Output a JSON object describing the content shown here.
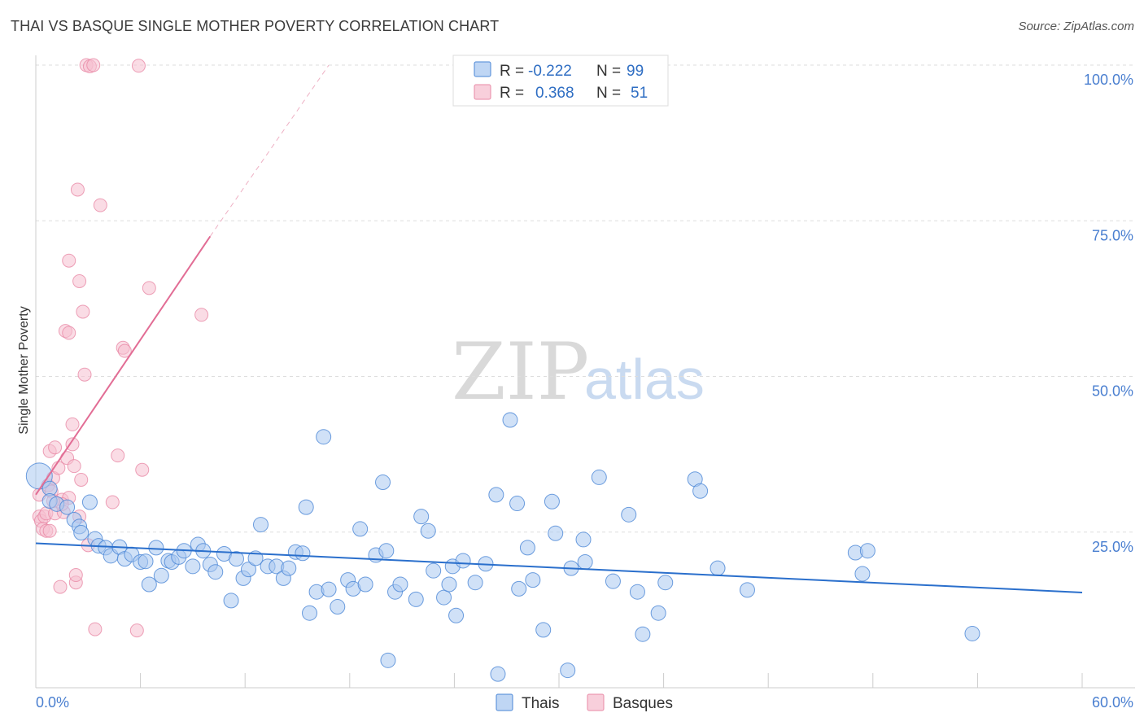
{
  "title": "THAI VS BASQUE SINGLE MOTHER POVERTY CORRELATION CHART",
  "source": "Source: ZipAtlas.com",
  "watermark": {
    "zip": "ZIP",
    "atlas": "atlas"
  },
  "legend": {
    "rows": [
      {
        "r_label": "R =",
        "r_value": "-0.222",
        "n_label": "N =",
        "n_value": "99"
      },
      {
        "r_label": "R =",
        "r_value": "0.368",
        "n_label": "N =",
        "n_value": "51"
      }
    ]
  },
  "bottom_legend": [
    "Thais",
    "Basques"
  ],
  "colors": {
    "thais_fill": "#a9c8f0",
    "thais_stroke": "#4a86d6",
    "thais_line": "#2a6fcc",
    "basques_fill": "#f6bfcf",
    "basques_stroke": "#e88aa6",
    "basques_line": "#e26d95",
    "tick_text": "#4a7fd0",
    "grid": "#dddddd"
  },
  "chart_data": {
    "type": "scatter",
    "title": "THAI VS BASQUE SINGLE MOTHER POVERTY CORRELATION CHART",
    "xlabel": "",
    "ylabel": "Single Mother Poverty",
    "xlim": [
      0,
      60
    ],
    "ylim": [
      0,
      100
    ],
    "x_tick_labels": [
      "0.0%",
      "60.0%"
    ],
    "y_tick_labels": [
      "25.0%",
      "50.0%",
      "75.0%",
      "100.0%"
    ],
    "y_ticks": [
      25,
      50,
      75,
      100
    ],
    "grid": true,
    "legend_position": "top-center",
    "series": [
      {
        "name": "Thais",
        "r": -0.222,
        "n": 99,
        "trend": {
          "x0": 0,
          "y0": 23.2,
          "x1": 60,
          "y1": 15.3
        },
        "points": [
          [
            0.2,
            34
          ],
          [
            0.8,
            32
          ],
          [
            0.8,
            30
          ],
          [
            1.2,
            29.5
          ],
          [
            1.8,
            29
          ],
          [
            2.2,
            27
          ],
          [
            3.1,
            29.8
          ],
          [
            2.5,
            25.9
          ],
          [
            2.6,
            24.9
          ],
          [
            3.4,
            23.9
          ],
          [
            3.6,
            22.8
          ],
          [
            4.0,
            22.5
          ],
          [
            4.3,
            21.2
          ],
          [
            4.8,
            22.6
          ],
          [
            5.1,
            20.7
          ],
          [
            5.5,
            21.4
          ],
          [
            6.0,
            20.2
          ],
          [
            6.3,
            20.3
          ],
          [
            6.5,
            16.6
          ],
          [
            6.9,
            22.5
          ],
          [
            7.2,
            18.0
          ],
          [
            7.6,
            20.4
          ],
          [
            7.8,
            20.2
          ],
          [
            8.2,
            21.0
          ],
          [
            8.5,
            22.0
          ],
          [
            9.0,
            19.5
          ],
          [
            9.3,
            23.0
          ],
          [
            9.6,
            22.0
          ],
          [
            10.0,
            19.8
          ],
          [
            10.3,
            18.6
          ],
          [
            10.8,
            21.5
          ],
          [
            11.2,
            14.0
          ],
          [
            11.5,
            20.7
          ],
          [
            11.9,
            17.6
          ],
          [
            12.2,
            19.0
          ],
          [
            12.6,
            20.8
          ],
          [
            12.9,
            26.2
          ],
          [
            13.3,
            19.5
          ],
          [
            13.8,
            19.5
          ],
          [
            14.2,
            17.6
          ],
          [
            14.5,
            19.2
          ],
          [
            14.9,
            21.8
          ],
          [
            15.3,
            21.6
          ],
          [
            15.5,
            29.0
          ],
          [
            15.7,
            12.0
          ],
          [
            16.1,
            15.4
          ],
          [
            16.5,
            40.3
          ],
          [
            16.8,
            15.8
          ],
          [
            17.3,
            13.0
          ],
          [
            17.9,
            17.3
          ],
          [
            18.2,
            15.9
          ],
          [
            18.6,
            25.5
          ],
          [
            18.9,
            16.6
          ],
          [
            19.5,
            21.3
          ],
          [
            19.9,
            33.0
          ],
          [
            20.1,
            22.0
          ],
          [
            20.6,
            15.4
          ],
          [
            20.9,
            16.6
          ],
          [
            21.8,
            14.2
          ],
          [
            22.1,
            27.5
          ],
          [
            22.5,
            25.2
          ],
          [
            22.8,
            18.8
          ],
          [
            23.4,
            14.5
          ],
          [
            23.7,
            16.6
          ],
          [
            23.9,
            19.5
          ],
          [
            24.1,
            11.6
          ],
          [
            24.5,
            20.4
          ],
          [
            25.2,
            16.9
          ],
          [
            25.8,
            19.9
          ],
          [
            26.4,
            31.0
          ],
          [
            26.5,
            2.2
          ],
          [
            27.2,
            43.0
          ],
          [
            27.6,
            29.6
          ],
          [
            27.7,
            15.9
          ],
          [
            28.2,
            22.5
          ],
          [
            28.5,
            17.3
          ],
          [
            29.1,
            9.3
          ],
          [
            29.6,
            29.9
          ],
          [
            29.8,
            24.8
          ],
          [
            30.5,
            2.8
          ],
          [
            30.7,
            19.2
          ],
          [
            31.4,
            23.8
          ],
          [
            31.5,
            20.2
          ],
          [
            32.3,
            33.8
          ],
          [
            33.1,
            17.1
          ],
          [
            34.0,
            27.8
          ],
          [
            34.5,
            15.4
          ],
          [
            34.8,
            8.6
          ],
          [
            35.7,
            12.0
          ],
          [
            36.1,
            16.9
          ],
          [
            37.8,
            33.5
          ],
          [
            38.1,
            31.6
          ],
          [
            39.1,
            19.2
          ],
          [
            40.8,
            15.7
          ],
          [
            47.0,
            21.7
          ],
          [
            47.4,
            18.3
          ],
          [
            47.7,
            22.0
          ],
          [
            53.7,
            8.7
          ],
          [
            20.2,
            4.4
          ]
        ]
      },
      {
        "name": "Basques",
        "r": 0.368,
        "n": 51,
        "trend": {
          "x0": 0,
          "y0": 31.0,
          "x1": 10,
          "y1": 72.5
        },
        "trend_dashed": {
          "x0": 10,
          "y0": 72.5,
          "x1": 16.8,
          "y1": 100
        },
        "points": [
          [
            0.2,
            31
          ],
          [
            0.2,
            27.5
          ],
          [
            0.3,
            26.8
          ],
          [
            0.4,
            25.5
          ],
          [
            0.5,
            27.5
          ],
          [
            0.6,
            28.0
          ],
          [
            0.6,
            25.2
          ],
          [
            0.7,
            32.5
          ],
          [
            0.8,
            38.0
          ],
          [
            0.8,
            25.2
          ],
          [
            0.9,
            31.5
          ],
          [
            1.0,
            33.7
          ],
          [
            1.1,
            28.0
          ],
          [
            1.1,
            38.6
          ],
          [
            1.3,
            35.3
          ],
          [
            1.4,
            16.2
          ],
          [
            1.5,
            30.2
          ],
          [
            1.6,
            28.2
          ],
          [
            1.7,
            57.3
          ],
          [
            1.8,
            36.9
          ],
          [
            1.9,
            57.0
          ],
          [
            1.9,
            30.5
          ],
          [
            1.9,
            68.6
          ],
          [
            2.1,
            42.3
          ],
          [
            2.1,
            39.1
          ],
          [
            2.2,
            35.6
          ],
          [
            2.3,
            16.9
          ],
          [
            2.3,
            18.1
          ],
          [
            2.4,
            80.0
          ],
          [
            2.5,
            27.5
          ],
          [
            2.5,
            65.3
          ],
          [
            2.6,
            33.4
          ],
          [
            2.7,
            60.4
          ],
          [
            2.8,
            50.3
          ],
          [
            3.0,
            22.9
          ],
          [
            2.9,
            100
          ],
          [
            3.1,
            99.8
          ],
          [
            3.3,
            100
          ],
          [
            3.4,
            9.4
          ],
          [
            3.7,
            77.5
          ],
          [
            4.4,
            29.8
          ],
          [
            4.7,
            37.3
          ],
          [
            5.0,
            54.6
          ],
          [
            5.1,
            54.1
          ],
          [
            5.8,
            9.2
          ],
          [
            5.9,
            99.9
          ],
          [
            6.1,
            35.0
          ],
          [
            6.5,
            64.2
          ],
          [
            9.5,
            59.9
          ],
          [
            1.5,
            29.5
          ],
          [
            1.0,
            30.0
          ]
        ]
      }
    ]
  }
}
